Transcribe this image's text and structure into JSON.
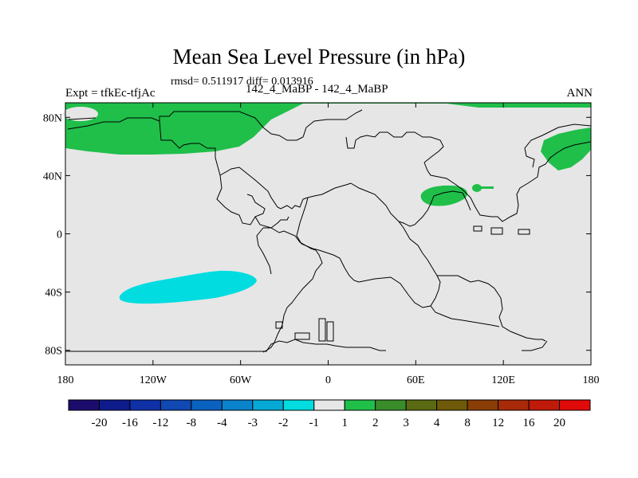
{
  "header": {
    "title": "Mean Sea Level Pressure (in hPa)",
    "stats": "rmsd= 0.511917 diff= 0.013916",
    "expt": "Expt = tfkEc-tfjAc",
    "cases": "142_4_MaBP - 142_4_MaBP",
    "season": "ANN"
  },
  "map": {
    "projection": "cylindrical-equidistant",
    "lon_range": [
      -180,
      180
    ],
    "lat_range": [
      -90,
      90
    ],
    "background_color": "#e6e6e6",
    "lat_ticks": [
      {
        "value": 80,
        "label": "80N"
      },
      {
        "value": 40,
        "label": "40N"
      },
      {
        "value": 0,
        "label": "0"
      },
      {
        "value": -40,
        "label": "40S"
      },
      {
        "value": -80,
        "label": "80S"
      }
    ],
    "lon_ticks": [
      {
        "value": -180,
        "label": "180"
      },
      {
        "value": -120,
        "label": "120W"
      },
      {
        "value": -60,
        "label": "60W"
      },
      {
        "value": 0,
        "label": "0"
      },
      {
        "value": 60,
        "label": "60E"
      },
      {
        "value": 120,
        "label": "120E"
      },
      {
        "value": 180,
        "label": "180"
      }
    ]
  },
  "chart_data": {
    "type": "heatmap",
    "variable": "Mean Sea Level Pressure difference",
    "units": "hPa",
    "regions": [
      {
        "lon": -155,
        "lat": 72,
        "category": "1 to 2",
        "color": "#1fbf4a"
      },
      {
        "lon": 63,
        "lat": 30,
        "category": "1 to 2",
        "color": "#1fbf4a"
      },
      {
        "lon": 165,
        "lat": 62,
        "category": "1 to 2",
        "color": "#1fbf4a"
      },
      {
        "lon": -105,
        "lat": -37,
        "category": "-2 to -1",
        "color": "#00dce0"
      }
    ],
    "colorbar": {
      "levels": [
        "-20",
        "-16",
        "-12",
        "-8",
        "-4",
        "-3",
        "-2",
        "-1",
        "1",
        "2",
        "3",
        "4",
        "8",
        "12",
        "16",
        "20"
      ],
      "colors": [
        "#1c0c6e",
        "#0e1b8c",
        "#1030a8",
        "#1048b4",
        "#0a62c0",
        "#0a82cc",
        "#06a8d6",
        "#00dce0",
        "#e6e6e6",
        "#1fbf4a",
        "#3a8c2a",
        "#5a6a12",
        "#6e5a08",
        "#8a3e06",
        "#a82a08",
        "#c01a0a",
        "#e00a0a"
      ]
    }
  }
}
